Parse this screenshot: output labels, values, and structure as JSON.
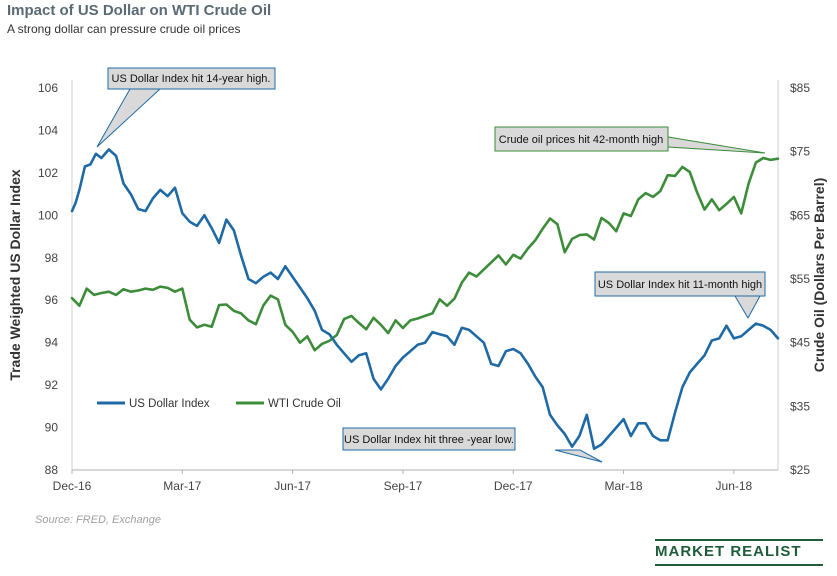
{
  "chart_data": {
    "type": "line",
    "title": "Impact of US Dollar on WTI Crude Oil",
    "subtitle": "A strong dollar can pressure crude oil prices",
    "x_tick_labels": [
      "Dec-16",
      "Mar-17",
      "Jun-17",
      "Sep-17",
      "Dec-17",
      "Mar-18",
      "Jun-18"
    ],
    "y_left": {
      "label": "Trade Weighted US Dollar Index",
      "range": [
        88,
        106
      ],
      "ticks": [
        "88",
        "90",
        "92",
        "94",
        "96",
        "98",
        "100",
        "102",
        "104",
        "106"
      ]
    },
    "y_right": {
      "label": "Crude Oil (Dollars  Per Barrel)",
      "range": [
        25,
        85
      ],
      "ticks": [
        "$25",
        "$35",
        "$45",
        "$55",
        "$65",
        "$75",
        "$85"
      ]
    },
    "x_range": [
      0,
      19.2
    ],
    "grid": false,
    "legend_position": "bottom-left",
    "series": [
      {
        "name": "US Dollar Index",
        "color": "#1f6aa5",
        "axis": "left",
        "x": [
          0,
          0.1,
          0.2,
          0.35,
          0.5,
          0.65,
          0.8,
          1.0,
          1.2,
          1.4,
          1.6,
          1.8,
          2.0,
          2.2,
          2.4,
          2.6,
          2.8,
          3.0,
          3.2,
          3.4,
          3.6,
          3.8,
          4.0,
          4.2,
          4.4,
          4.6,
          4.8,
          5.0,
          5.2,
          5.4,
          5.6,
          5.8,
          6.0,
          6.2,
          6.4,
          6.6,
          6.8,
          7.0,
          7.2,
          7.4,
          7.6,
          7.8,
          8.0,
          8.2,
          8.4,
          8.6,
          8.8,
          9.0,
          9.2,
          9.4,
          9.6,
          9.8,
          10.0,
          10.2,
          10.4,
          10.6,
          10.8,
          11.0,
          11.2,
          11.4,
          11.6,
          11.8,
          12.0,
          12.2,
          12.4,
          12.6,
          12.8,
          13.0,
          13.2,
          13.4,
          13.6,
          13.8,
          14.0,
          14.2,
          14.4,
          14.6,
          14.8,
          15.0,
          15.2,
          15.4,
          15.6,
          15.8,
          16.0,
          16.2,
          16.4,
          16.6,
          16.8,
          17.0,
          17.2,
          17.4,
          17.6,
          17.8,
          18.0,
          18.2,
          18.4,
          18.6,
          18.8,
          19.0,
          19.2
        ],
        "values": [
          100.2,
          100.6,
          101.2,
          102.3,
          102.4,
          102.9,
          102.7,
          103.1,
          102.8,
          101.5,
          101.0,
          100.3,
          100.2,
          100.8,
          101.2,
          100.9,
          101.3,
          100.1,
          99.7,
          99.5,
          100.0,
          99.4,
          98.7,
          99.8,
          99.3,
          98.1,
          97.0,
          96.8,
          97.1,
          97.3,
          97.0,
          97.6,
          97.1,
          96.6,
          96.1,
          95.5,
          94.6,
          94.4,
          93.9,
          93.5,
          93.1,
          93.4,
          93.5,
          92.3,
          91.8,
          92.3,
          92.9,
          93.3,
          93.6,
          93.9,
          94.0,
          94.5,
          94.4,
          94.3,
          93.9,
          94.7,
          94.6,
          94.3,
          94.0,
          93.0,
          92.9,
          93.6,
          93.7,
          93.5,
          93.0,
          92.4,
          91.9,
          90.6,
          90.1,
          89.7,
          89.1,
          89.6,
          90.6,
          89.0,
          89.2,
          89.6,
          90.0,
          90.4,
          89.6,
          90.2,
          90.2,
          89.6,
          89.4,
          89.4,
          90.7,
          91.9,
          92.6,
          93.0,
          93.4,
          94.1,
          94.2,
          94.8,
          94.2,
          94.3,
          94.6,
          94.9,
          94.8,
          94.6,
          94.2
        ]
      },
      {
        "name": "WTI Crude Oil",
        "color": "#3c8c3a",
        "axis": "right",
        "x": [
          0,
          0.2,
          0.4,
          0.6,
          0.8,
          1.0,
          1.2,
          1.4,
          1.6,
          1.8,
          2.0,
          2.2,
          2.4,
          2.6,
          2.8,
          3.0,
          3.2,
          3.4,
          3.6,
          3.8,
          4.0,
          4.2,
          4.4,
          4.6,
          4.8,
          5.0,
          5.2,
          5.4,
          5.6,
          5.8,
          6.0,
          6.2,
          6.4,
          6.6,
          6.8,
          7.0,
          7.2,
          7.4,
          7.6,
          7.8,
          8.0,
          8.2,
          8.4,
          8.6,
          8.8,
          9.0,
          9.2,
          9.4,
          9.6,
          9.8,
          10.0,
          10.2,
          10.4,
          10.6,
          10.8,
          11.0,
          11.2,
          11.4,
          11.6,
          11.8,
          12.0,
          12.2,
          12.4,
          12.6,
          12.8,
          13.0,
          13.2,
          13.4,
          13.6,
          13.8,
          14.0,
          14.2,
          14.4,
          14.6,
          14.8,
          15.0,
          15.2,
          15.4,
          15.6,
          15.8,
          16.0,
          16.2,
          16.4,
          16.6,
          16.8,
          17.0,
          17.2,
          17.4,
          17.6,
          17.8,
          18.0,
          18.2,
          18.4,
          18.6,
          18.8,
          19.0,
          19.2
        ],
        "values": [
          52.0,
          50.8,
          53.5,
          52.5,
          52.8,
          53.0,
          52.5,
          53.4,
          53.0,
          53.2,
          53.5,
          53.3,
          53.8,
          53.6,
          53.0,
          53.5,
          48.6,
          47.4,
          47.8,
          47.5,
          50.9,
          51.0,
          50.0,
          49.6,
          48.5,
          47.9,
          50.8,
          52.4,
          51.8,
          47.8,
          46.7,
          45.0,
          46.0,
          43.8,
          44.8,
          45.3,
          46.2,
          48.7,
          49.2,
          48.1,
          47.1,
          48.9,
          47.8,
          46.5,
          48.5,
          47.3,
          48.5,
          48.8,
          49.2,
          49.6,
          51.8,
          50.8,
          51.9,
          54.4,
          56.0,
          55.4,
          56.5,
          57.6,
          58.7,
          57.3,
          58.8,
          58.2,
          59.8,
          61.1,
          62.9,
          64.5,
          63.6,
          59.2,
          61.3,
          61.9,
          62.0,
          61.2,
          64.6,
          63.8,
          62.5,
          65.3,
          64.9,
          67.5,
          68.5,
          67.9,
          68.8,
          71.3,
          71.2,
          72.6,
          71.8,
          68.6,
          65.9,
          67.5,
          65.8,
          66.8,
          67.9,
          65.3,
          70.0,
          73.3,
          74.0,
          73.7,
          73.9
        ]
      }
    ],
    "annotations": [
      "US Dollar Index hit 14-year high.",
      "Crude oil prices hit 42-month high",
      "US Dollar Index hit 11-month high",
      "US Dollar Index hit three -year low."
    ]
  },
  "source": "Source: FRED, Exchange",
  "brand": "MARKET REALIST"
}
